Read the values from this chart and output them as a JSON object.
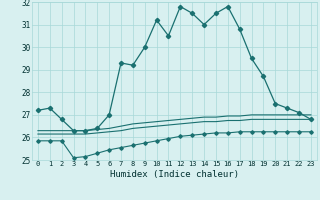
{
  "x": [
    0,
    1,
    2,
    3,
    4,
    5,
    6,
    7,
    8,
    9,
    10,
    11,
    12,
    13,
    14,
    15,
    16,
    17,
    18,
    19,
    20,
    21,
    22,
    23
  ],
  "line1_y": [
    27.2,
    27.3,
    26.8,
    26.3,
    26.3,
    26.4,
    27.0,
    29.3,
    29.2,
    30.0,
    31.2,
    30.5,
    31.8,
    31.5,
    31.0,
    31.5,
    31.8,
    30.8,
    29.5,
    28.7,
    27.5,
    27.3,
    27.1,
    26.8
  ],
  "line2_y": [
    26.3,
    26.3,
    26.3,
    26.3,
    26.3,
    26.35,
    26.4,
    26.5,
    26.6,
    26.65,
    26.7,
    26.75,
    26.8,
    26.85,
    26.9,
    26.9,
    26.95,
    26.95,
    27.0,
    27.0,
    27.0,
    27.0,
    27.0,
    27.0
  ],
  "line3_y": [
    26.15,
    26.15,
    26.15,
    26.15,
    26.15,
    26.2,
    26.25,
    26.3,
    26.4,
    26.45,
    26.5,
    26.55,
    26.6,
    26.65,
    26.7,
    26.7,
    26.75,
    26.75,
    26.8,
    26.8,
    26.8,
    26.8,
    26.8,
    26.8
  ],
  "line4_y": [
    25.85,
    25.85,
    25.85,
    25.1,
    25.15,
    25.3,
    25.45,
    25.55,
    25.65,
    25.75,
    25.85,
    25.95,
    26.05,
    26.1,
    26.15,
    26.2,
    26.2,
    26.25,
    26.25,
    26.25,
    26.25,
    26.25,
    26.25,
    26.25
  ],
  "line_color": "#1a7070",
  "bg_color": "#d8f0f0",
  "grid_color": "#a8d8d8",
  "xlabel": "Humidex (Indice chaleur)",
  "ylim": [
    25,
    32
  ],
  "xlim": [
    -0.5,
    23.5
  ],
  "yticks": [
    25,
    26,
    27,
    28,
    29,
    30,
    31,
    32
  ],
  "xticks": [
    0,
    1,
    2,
    3,
    4,
    5,
    6,
    7,
    8,
    9,
    10,
    11,
    12,
    13,
    14,
    15,
    16,
    17,
    18,
    19,
    20,
    21,
    22,
    23
  ]
}
